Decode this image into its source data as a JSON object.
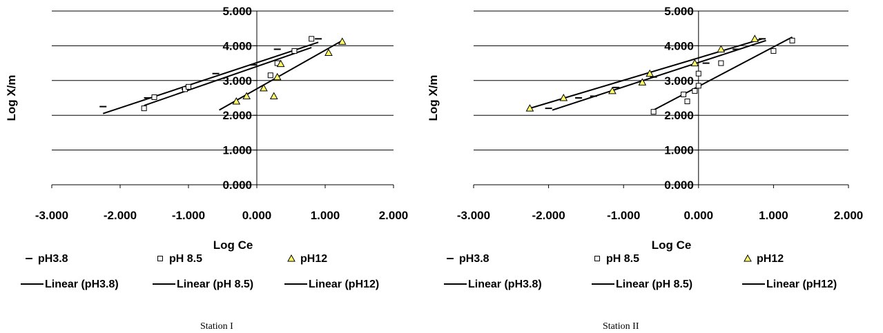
{
  "chart_data": [
    {
      "type": "scatter",
      "caption": "Station I",
      "xlabel": "Log Ce",
      "ylabel": "Log X/m",
      "xlim": [
        -3,
        2
      ],
      "ylim": [
        0,
        5
      ],
      "xticks": [
        "-3.000",
        "-2.000",
        "-1.000",
        "0.000",
        "1.000",
        "2.000"
      ],
      "yticks": [
        "0.000",
        "1.000",
        "2.000",
        "3.000",
        "4.000",
        "5.000"
      ],
      "grid": "horizontal",
      "legend_position": "bottom",
      "series": [
        {
          "name": "pH3.8",
          "marker": "dash",
          "color": "#000000",
          "x": [
            -2.25,
            -1.6,
            -1.05,
            -0.6,
            -0.05,
            0.3,
            0.9
          ],
          "y": [
            2.25,
            2.5,
            2.75,
            3.2,
            3.45,
            3.9,
            4.2
          ]
        },
        {
          "name": "pH 8.5",
          "marker": "square",
          "color": "#000000",
          "x": [
            -1.65,
            -1.5,
            -1.05,
            -1.0,
            0.2,
            0.3,
            0.55,
            0.8
          ],
          "y": [
            2.2,
            2.52,
            2.75,
            2.82,
            3.15,
            3.5,
            3.85,
            4.2
          ]
        },
        {
          "name": "pH12",
          "marker": "triangle",
          "color": "#FFFF66",
          "x": [
            -0.3,
            -0.15,
            0.1,
            0.25,
            0.3,
            0.35,
            1.05,
            1.25
          ],
          "y": [
            2.4,
            2.55,
            2.78,
            2.55,
            3.1,
            3.48,
            3.8,
            4.12
          ]
        }
      ],
      "trendlines": [
        {
          "name": "Linear (pH3.8)",
          "x": [
            -2.25,
            0.9
          ],
          "y": [
            2.05,
            4.1
          ]
        },
        {
          "name": "Linear (pH 8.5)",
          "x": [
            -1.65,
            0.8
          ],
          "y": [
            2.28,
            3.95
          ]
        },
        {
          "name": "Linear (pH12)",
          "x": [
            -0.55,
            1.25
          ],
          "y": [
            2.15,
            4.15
          ]
        }
      ]
    },
    {
      "type": "scatter",
      "caption": "Station II",
      "xlabel": "Log Ce",
      "ylabel": "Log X/m",
      "xlim": [
        -3,
        2
      ],
      "ylim": [
        0,
        5
      ],
      "xticks": [
        "-3.000",
        "-2.000",
        "-1.000",
        "0.000",
        "1.000",
        "2.000"
      ],
      "yticks": [
        "0.000",
        "1.000",
        "2.000",
        "3.000",
        "4.000",
        "5.000"
      ],
      "grid": "horizontal",
      "legend_position": "bottom",
      "series": [
        {
          "name": "pH3.8",
          "marker": "dash",
          "color": "#000000",
          "x": [
            -2.0,
            -1.6,
            -1.4,
            -1.1,
            -0.6,
            0.1,
            0.5,
            0.85
          ],
          "y": [
            2.2,
            2.5,
            2.55,
            2.8,
            3.1,
            3.5,
            3.9,
            4.2
          ]
        },
        {
          "name": "pH 8.5",
          "marker": "square",
          "color": "#000000",
          "x": [
            -0.6,
            -0.2,
            -0.15,
            -0.05,
            0.0,
            0.0,
            0.3,
            1.0,
            1.25
          ],
          "y": [
            2.1,
            2.6,
            2.4,
            2.7,
            2.85,
            3.2,
            3.5,
            3.85,
            4.15
          ]
        },
        {
          "name": "pH12",
          "marker": "triangle",
          "color": "#FFFF66",
          "x": [
            -2.25,
            -1.8,
            -1.15,
            -0.75,
            -0.65,
            -0.05,
            0.3,
            0.75
          ],
          "y": [
            2.2,
            2.5,
            2.7,
            2.95,
            3.2,
            3.5,
            3.9,
            4.2
          ]
        }
      ],
      "trendlines": [
        {
          "name": "Linear (pH3.8)",
          "x": [
            -1.95,
            0.9
          ],
          "y": [
            2.15,
            4.15
          ]
        },
        {
          "name": "Linear (pH 8.5)",
          "x": [
            -0.6,
            1.25
          ],
          "y": [
            2.15,
            4.25
          ]
        },
        {
          "name": "Linear (pH12)",
          "x": [
            -2.25,
            0.85
          ],
          "y": [
            2.2,
            4.2
          ]
        }
      ]
    }
  ]
}
